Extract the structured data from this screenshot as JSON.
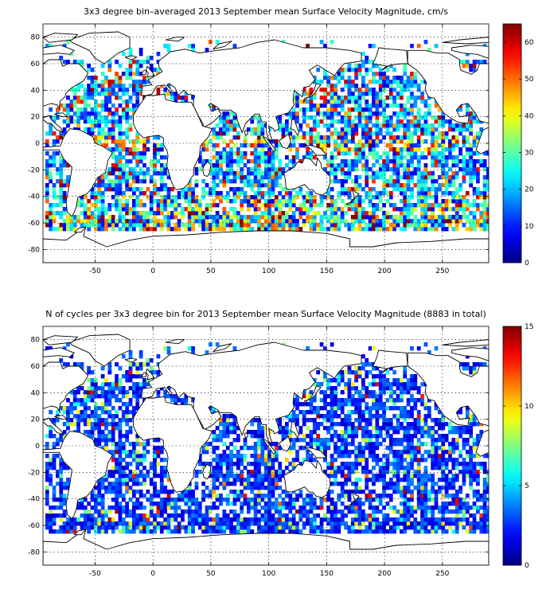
{
  "chart_data": [
    {
      "type": "heatmap",
      "title": "3x3 degree bin–averaged 2013 September mean Surface Velocity Magnitude, cm/s",
      "xlabel": "",
      "ylabel": "",
      "xlim": [
        -95,
        290
      ],
      "ylim": [
        -90,
        90
      ],
      "xticks": [
        -50,
        0,
        50,
        100,
        150,
        200,
        250
      ],
      "yticks": [
        80,
        60,
        40,
        20,
        0,
        -20,
        -40,
        -60,
        -80
      ],
      "grid": true,
      "colorbar": {
        "min": 0,
        "max": 65,
        "ticks": [
          0,
          10,
          20,
          30,
          40,
          50,
          60
        ],
        "colormap": "jet",
        "placement": "right"
      },
      "bin_size_deg": 3
    },
    {
      "type": "heatmap",
      "title": "N of cycles per 3x3 degree bin for 2013 September mean Surface Velocity Magnitude (8883 in total)",
      "xlabel": "",
      "ylabel": "",
      "xlim": [
        -95,
        290
      ],
      "ylim": [
        -90,
        90
      ],
      "xticks": [
        -50,
        0,
        50,
        100,
        150,
        200,
        250
      ],
      "yticks": [
        80,
        60,
        40,
        20,
        0,
        -20,
        -40,
        -60,
        -80
      ],
      "grid": true,
      "colorbar": {
        "min": 0,
        "max": 15,
        "ticks": [
          0,
          5,
          10,
          15
        ],
        "colormap": "jet",
        "placement": "right"
      },
      "bin_size_deg": 3
    }
  ]
}
